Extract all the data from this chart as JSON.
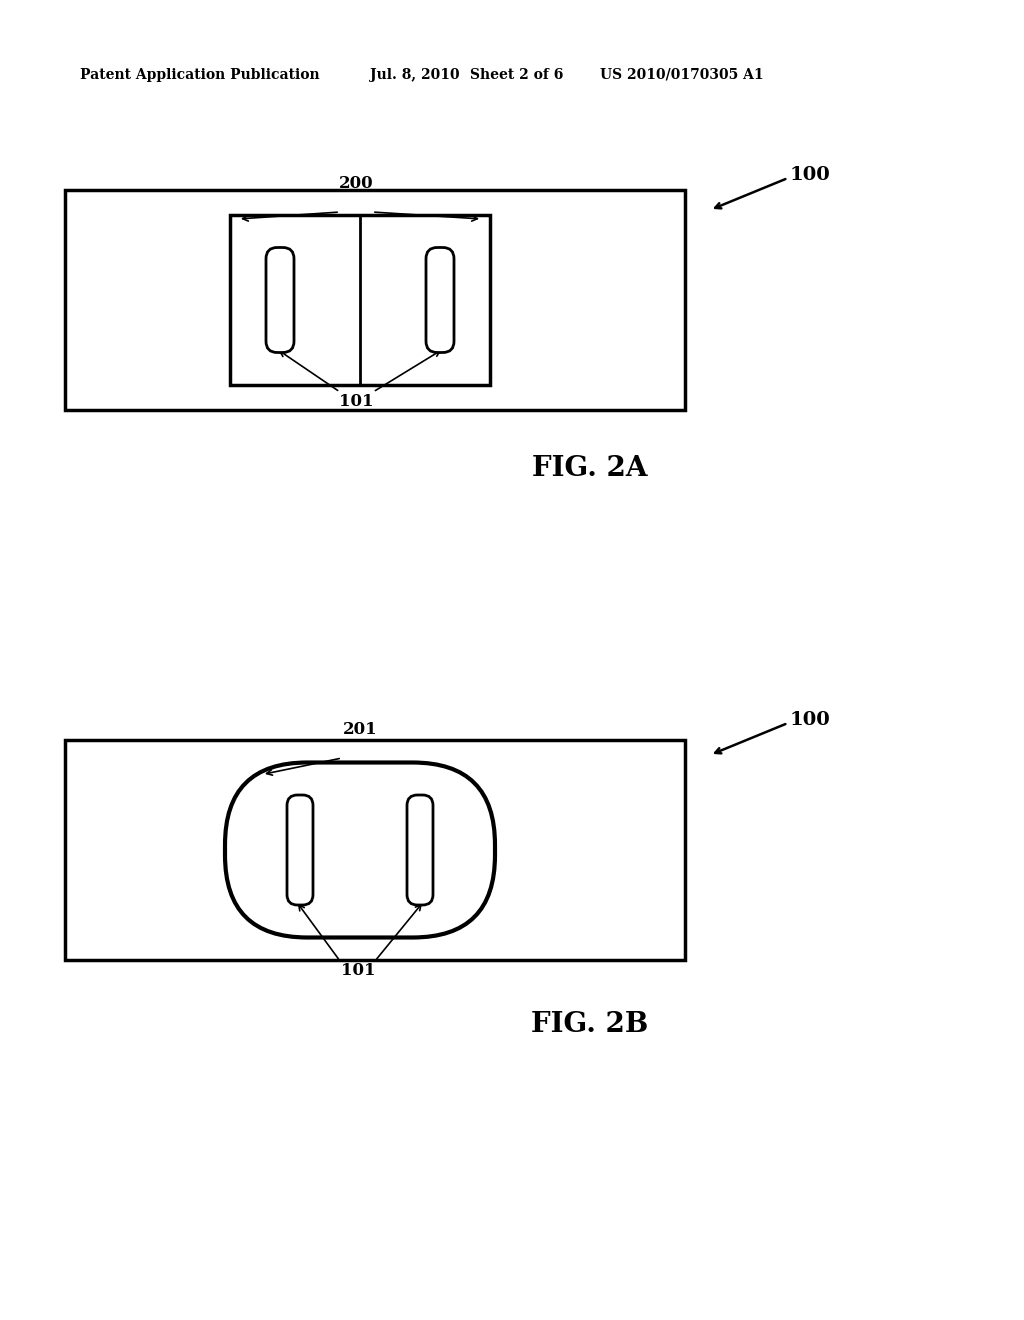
{
  "background_color": "#ffffff",
  "header_text": "Patent Application Publication",
  "header_date": "Jul. 8, 2010",
  "header_sheet": "Sheet 2 of 6",
  "header_patent": "US 2010/0170305 A1",
  "fig2a_label": "FIG. 2A",
  "fig2b_label": "FIG. 2B",
  "label_100_1": "100",
  "label_100_2": "100",
  "label_200": "200",
  "label_201": "201",
  "label_101_1": "101",
  "label_101_2": "101",
  "line_color": "#000000",
  "line_width": 2.0
}
